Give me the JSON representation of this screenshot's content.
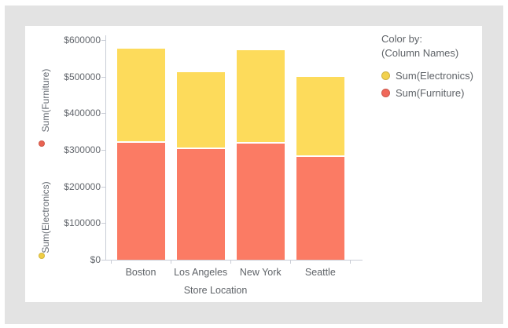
{
  "window": {
    "background_color": "#e3e3e3",
    "card_color": "#ffffff"
  },
  "chart_data": {
    "type": "bar",
    "stacked": true,
    "title": "",
    "categories": [
      "Boston",
      "Los Angeles",
      "New York",
      "Seattle"
    ],
    "series": [
      {
        "name": "Sum(Furniture)",
        "color": "#FB7B64",
        "values": [
          320000,
          302000,
          317000,
          281000
        ]
      },
      {
        "name": "Sum(Electronics)",
        "color": "#FDDB5B",
        "values": [
          255000,
          210000,
          255000,
          219000
        ]
      }
    ],
    "totals": [
      575000,
      512000,
      572000,
      500000
    ],
    "xlabel": "Store Location",
    "ylabel_measures": [
      "Sum(Furniture)",
      "Sum(Electronics)"
    ],
    "y_axis": {
      "min": 0,
      "max": 600000,
      "tick_step": 100000,
      "tick_labels": [
        "$0",
        "$100000",
        "$200000",
        "$300000",
        "$400000",
        "$500000",
        "$600000"
      ]
    },
    "grid": false,
    "legend_position": "right"
  },
  "y_axis_measures": [
    {
      "label": "Sum(Furniture)",
      "dot_color": "#EA6352"
    },
    {
      "label": "Sum(Electronics)",
      "dot_color": "#F0CE44"
    }
  ],
  "x_axis": {
    "title": "Store Location"
  },
  "legend": {
    "title": "Color by:",
    "subtitle": "(Column Names)",
    "items": [
      {
        "label": "Sum(Electronics)",
        "color": "#F2D14D"
      },
      {
        "label": "Sum(Furniture)",
        "color": "#F0685A"
      }
    ]
  }
}
